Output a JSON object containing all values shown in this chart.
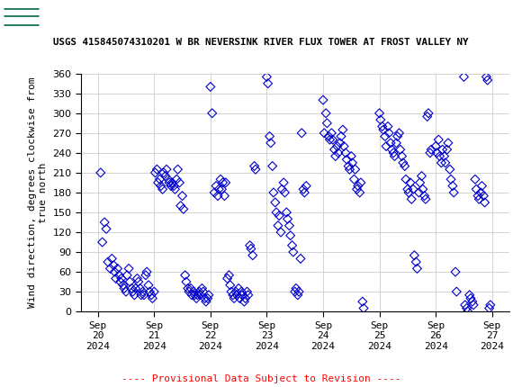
{
  "title": "USGS 415845074310201 W BR NEVERSINK RIVER FLUX TOWER AT FROST VALLEY NY",
  "ylabel": "Wind direction, degrees clockwise from\ntrue north",
  "provisional_text": "---- Provisional Data Subject to Revision ----",
  "marker_color": "#0000CC",
  "marker_size": 5,
  "ylim": [
    0,
    360
  ],
  "yticks": [
    0,
    30,
    60,
    90,
    120,
    150,
    180,
    210,
    240,
    270,
    300,
    330,
    360
  ],
  "background_color": "#ffffff",
  "header_color": "#006644",
  "grid_color": "#cccccc",
  "scatter_data": [
    [
      0.05,
      210
    ],
    [
      0.08,
      105
    ],
    [
      0.12,
      135
    ],
    [
      0.15,
      125
    ],
    [
      0.18,
      75
    ],
    [
      0.22,
      65
    ],
    [
      0.25,
      80
    ],
    [
      0.28,
      70
    ],
    [
      0.3,
      60
    ],
    [
      0.32,
      50
    ],
    [
      0.35,
      65
    ],
    [
      0.38,
      55
    ],
    [
      0.4,
      45
    ],
    [
      0.42,
      50
    ],
    [
      0.45,
      40
    ],
    [
      0.47,
      35
    ],
    [
      0.5,
      30
    ],
    [
      0.52,
      55
    ],
    [
      0.55,
      65
    ],
    [
      0.57,
      45
    ],
    [
      0.6,
      35
    ],
    [
      0.62,
      30
    ],
    [
      0.65,
      25
    ],
    [
      0.67,
      35
    ],
    [
      0.7,
      50
    ],
    [
      0.72,
      45
    ],
    [
      0.75,
      35
    ],
    [
      0.77,
      25
    ],
    [
      0.8,
      30
    ],
    [
      0.82,
      25
    ],
    [
      0.85,
      55
    ],
    [
      0.87,
      60
    ],
    [
      0.9,
      40
    ],
    [
      0.92,
      30
    ],
    [
      0.95,
      25
    ],
    [
      0.97,
      20
    ],
    [
      1.0,
      30
    ],
    [
      1.02,
      210
    ],
    [
      1.05,
      215
    ],
    [
      1.07,
      195
    ],
    [
      1.1,
      200
    ],
    [
      1.12,
      190
    ],
    [
      1.15,
      185
    ],
    [
      1.17,
      210
    ],
    [
      1.2,
      205
    ],
    [
      1.22,
      215
    ],
    [
      1.25,
      200
    ],
    [
      1.27,
      195
    ],
    [
      1.3,
      190
    ],
    [
      1.32,
      195
    ],
    [
      1.35,
      190
    ],
    [
      1.37,
      185
    ],
    [
      1.4,
      200
    ],
    [
      1.42,
      215
    ],
    [
      1.45,
      195
    ],
    [
      1.47,
      160
    ],
    [
      1.5,
      175
    ],
    [
      1.52,
      155
    ],
    [
      1.55,
      55
    ],
    [
      1.57,
      45
    ],
    [
      1.6,
      35
    ],
    [
      1.62,
      30
    ],
    [
      1.65,
      35
    ],
    [
      1.67,
      25
    ],
    [
      1.7,
      30
    ],
    [
      1.72,
      25
    ],
    [
      1.75,
      20
    ],
    [
      1.77,
      25
    ],
    [
      1.8,
      30
    ],
    [
      1.82,
      25
    ],
    [
      1.85,
      35
    ],
    [
      1.87,
      30
    ],
    [
      1.9,
      20
    ],
    [
      1.92,
      15
    ],
    [
      1.95,
      20
    ],
    [
      1.97,
      25
    ],
    [
      2.0,
      340
    ],
    [
      2.03,
      300
    ],
    [
      2.07,
      180
    ],
    [
      2.1,
      190
    ],
    [
      2.13,
      175
    ],
    [
      2.15,
      185
    ],
    [
      2.18,
      200
    ],
    [
      2.2,
      185
    ],
    [
      2.22,
      195
    ],
    [
      2.25,
      175
    ],
    [
      2.27,
      195
    ],
    [
      2.3,
      50
    ],
    [
      2.33,
      55
    ],
    [
      2.35,
      40
    ],
    [
      2.37,
      30
    ],
    [
      2.4,
      25
    ],
    [
      2.42,
      20
    ],
    [
      2.45,
      30
    ],
    [
      2.47,
      25
    ],
    [
      2.5,
      35
    ],
    [
      2.52,
      20
    ],
    [
      2.55,
      30
    ],
    [
      2.57,
      25
    ],
    [
      2.6,
      15
    ],
    [
      2.62,
      20
    ],
    [
      2.65,
      30
    ],
    [
      2.67,
      25
    ],
    [
      2.7,
      100
    ],
    [
      2.72,
      95
    ],
    [
      2.75,
      85
    ],
    [
      2.78,
      220
    ],
    [
      2.8,
      215
    ],
    [
      3.0,
      355
    ],
    [
      3.02,
      345
    ],
    [
      3.05,
      265
    ],
    [
      3.07,
      255
    ],
    [
      3.1,
      220
    ],
    [
      3.12,
      180
    ],
    [
      3.15,
      165
    ],
    [
      3.17,
      150
    ],
    [
      3.2,
      130
    ],
    [
      3.22,
      145
    ],
    [
      3.25,
      120
    ],
    [
      3.27,
      185
    ],
    [
      3.3,
      195
    ],
    [
      3.32,
      180
    ],
    [
      3.35,
      150
    ],
    [
      3.37,
      140
    ],
    [
      3.4,
      130
    ],
    [
      3.42,
      115
    ],
    [
      3.45,
      100
    ],
    [
      3.47,
      90
    ],
    [
      3.5,
      30
    ],
    [
      3.52,
      35
    ],
    [
      3.55,
      25
    ],
    [
      3.57,
      30
    ],
    [
      3.6,
      80
    ],
    [
      3.62,
      270
    ],
    [
      3.65,
      185
    ],
    [
      3.67,
      180
    ],
    [
      3.7,
      190
    ],
    [
      4.0,
      320
    ],
    [
      4.02,
      270
    ],
    [
      4.05,
      300
    ],
    [
      4.07,
      285
    ],
    [
      4.1,
      265
    ],
    [
      4.12,
      260
    ],
    [
      4.15,
      270
    ],
    [
      4.17,
      260
    ],
    [
      4.2,
      245
    ],
    [
      4.22,
      235
    ],
    [
      4.25,
      250
    ],
    [
      4.27,
      240
    ],
    [
      4.3,
      255
    ],
    [
      4.32,
      265
    ],
    [
      4.35,
      275
    ],
    [
      4.37,
      250
    ],
    [
      4.4,
      240
    ],
    [
      4.42,
      230
    ],
    [
      4.45,
      220
    ],
    [
      4.47,
      215
    ],
    [
      4.5,
      235
    ],
    [
      4.52,
      225
    ],
    [
      4.55,
      200
    ],
    [
      4.57,
      215
    ],
    [
      4.6,
      185
    ],
    [
      4.62,
      190
    ],
    [
      4.65,
      180
    ],
    [
      4.67,
      195
    ],
    [
      4.7,
      15
    ],
    [
      4.72,
      5
    ],
    [
      5.0,
      300
    ],
    [
      5.02,
      290
    ],
    [
      5.05,
      280
    ],
    [
      5.07,
      275
    ],
    [
      5.1,
      265
    ],
    [
      5.12,
      250
    ],
    [
      5.15,
      280
    ],
    [
      5.17,
      270
    ],
    [
      5.2,
      255
    ],
    [
      5.22,
      245
    ],
    [
      5.25,
      240
    ],
    [
      5.27,
      235
    ],
    [
      5.3,
      255
    ],
    [
      5.32,
      265
    ],
    [
      5.35,
      270
    ],
    [
      5.37,
      245
    ],
    [
      5.4,
      235
    ],
    [
      5.42,
      225
    ],
    [
      5.45,
      220
    ],
    [
      5.47,
      200
    ],
    [
      5.5,
      185
    ],
    [
      5.52,
      180
    ],
    [
      5.55,
      195
    ],
    [
      5.57,
      170
    ],
    [
      5.6,
      185
    ],
    [
      5.62,
      85
    ],
    [
      5.65,
      75
    ],
    [
      5.67,
      65
    ],
    [
      5.7,
      180
    ],
    [
      5.72,
      195
    ],
    [
      5.75,
      205
    ],
    [
      5.77,
      185
    ],
    [
      5.8,
      175
    ],
    [
      5.82,
      170
    ],
    [
      5.85,
      295
    ],
    [
      5.87,
      300
    ],
    [
      5.9,
      240
    ],
    [
      5.92,
      245
    ],
    [
      6.0,
      250
    ],
    [
      6.02,
      240
    ],
    [
      6.05,
      260
    ],
    [
      6.07,
      235
    ],
    [
      6.1,
      225
    ],
    [
      6.12,
      245
    ],
    [
      6.15,
      235
    ],
    [
      6.17,
      225
    ],
    [
      6.2,
      245
    ],
    [
      6.22,
      255
    ],
    [
      6.25,
      215
    ],
    [
      6.27,
      200
    ],
    [
      6.3,
      190
    ],
    [
      6.32,
      180
    ],
    [
      6.35,
      60
    ],
    [
      6.37,
      30
    ],
    [
      6.5,
      355
    ],
    [
      6.52,
      10
    ],
    [
      6.55,
      5
    ],
    [
      6.57,
      0
    ],
    [
      6.6,
      25
    ],
    [
      6.62,
      20
    ],
    [
      6.65,
      15
    ],
    [
      6.67,
      10
    ],
    [
      6.7,
      200
    ],
    [
      6.72,
      185
    ],
    [
      6.75,
      175
    ],
    [
      6.77,
      170
    ],
    [
      6.8,
      180
    ],
    [
      6.82,
      190
    ],
    [
      6.85,
      175
    ],
    [
      6.87,
      165
    ],
    [
      6.9,
      355
    ],
    [
      6.92,
      350
    ],
    [
      6.95,
      5
    ],
    [
      6.97,
      10
    ]
  ],
  "xtick_positions": [
    0,
    1,
    2,
    3,
    4,
    5,
    6,
    7
  ],
  "xtick_labels": [
    "Sep\n20\n2024",
    "Sep\n21\n2024",
    "Sep\n22\n2024",
    "Sep\n23\n2024",
    "Sep\n24\n2024",
    "Sep\n25\n2024",
    "Sep\n26\n2024",
    "Sep\n27\n2024"
  ],
  "xlim": [
    -0.3,
    7.3
  ]
}
